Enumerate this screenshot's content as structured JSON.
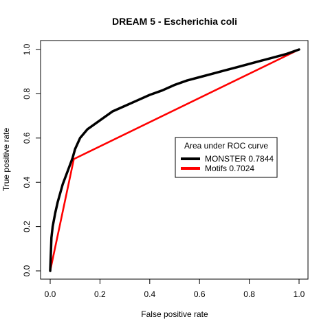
{
  "chart_data": {
    "type": "line",
    "title": "DREAM 5 - Escherichia coli",
    "xlabel": "False positive rate",
    "ylabel": "True positive rate",
    "xlim": [
      0,
      1
    ],
    "ylim": [
      0,
      1
    ],
    "x_ticks": [
      "0.0",
      "0.2",
      "0.4",
      "0.6",
      "0.8",
      "1.0"
    ],
    "y_ticks": [
      "0.0",
      "0.2",
      "0.4",
      "0.6",
      "0.8",
      "1.0"
    ],
    "grid": false,
    "legend": {
      "title": "Area under ROC curve",
      "position": "center-right",
      "entries": [
        "MONSTER 0.7844",
        "Motifs 0.7024"
      ]
    },
    "series": [
      {
        "name": "MONSTER 0.7844",
        "color": "#000000",
        "x": [
          0,
          0.005,
          0.01,
          0.02,
          0.03,
          0.04,
          0.05,
          0.06,
          0.07,
          0.08,
          0.09,
          0.1,
          0.12,
          0.15,
          0.2,
          0.25,
          0.3,
          0.35,
          0.4,
          0.45,
          0.5,
          0.55,
          0.6,
          0.65,
          0.7,
          0.75,
          0.8,
          0.85,
          0.9,
          0.95,
          1.0
        ],
        "y": [
          0,
          0.15,
          0.2,
          0.26,
          0.31,
          0.35,
          0.39,
          0.42,
          0.45,
          0.48,
          0.51,
          0.55,
          0.6,
          0.64,
          0.68,
          0.72,
          0.745,
          0.77,
          0.795,
          0.815,
          0.84,
          0.86,
          0.875,
          0.89,
          0.905,
          0.92,
          0.935,
          0.95,
          0.965,
          0.98,
          1.0
        ]
      },
      {
        "name": "Motifs 0.7024",
        "color": "#ff0000",
        "x": [
          0,
          0.095,
          1.0
        ],
        "y": [
          0,
          0.505,
          1.0
        ]
      }
    ]
  }
}
